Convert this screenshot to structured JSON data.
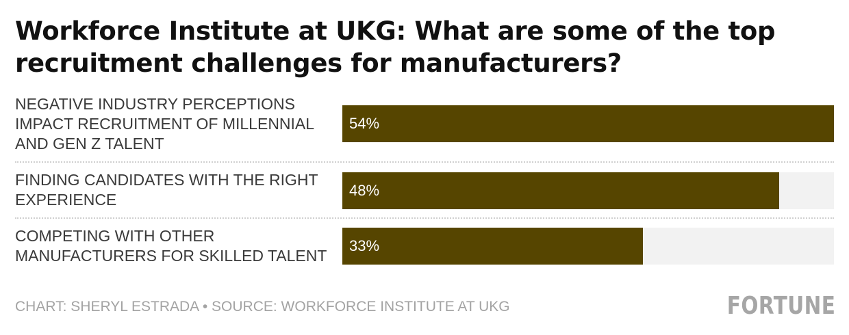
{
  "chart_data": {
    "type": "bar",
    "orientation": "horizontal",
    "title": "Workforce Institute at UKG: What are some of the top recruitment challenges for manufacturers?",
    "categories": [
      "Negative industry perceptions impact recruitment of millennial and Gen Z talent",
      "Finding candidates with the right experience",
      "Competing with other manufacturers for skilled talent"
    ],
    "values": [
      54,
      48,
      33
    ],
    "value_labels": [
      "54%",
      "48%",
      "33%"
    ],
    "unit": "%",
    "xlim": [
      0,
      54
    ],
    "grid": false,
    "colors": {
      "bar": "#564500",
      "track": "#f2f2f2"
    }
  },
  "footer": {
    "credit": "Chart: Sheryl Estrada • Source: Workforce Institute at UKG"
  },
  "brand": {
    "logo_text": "FORTUNE"
  }
}
